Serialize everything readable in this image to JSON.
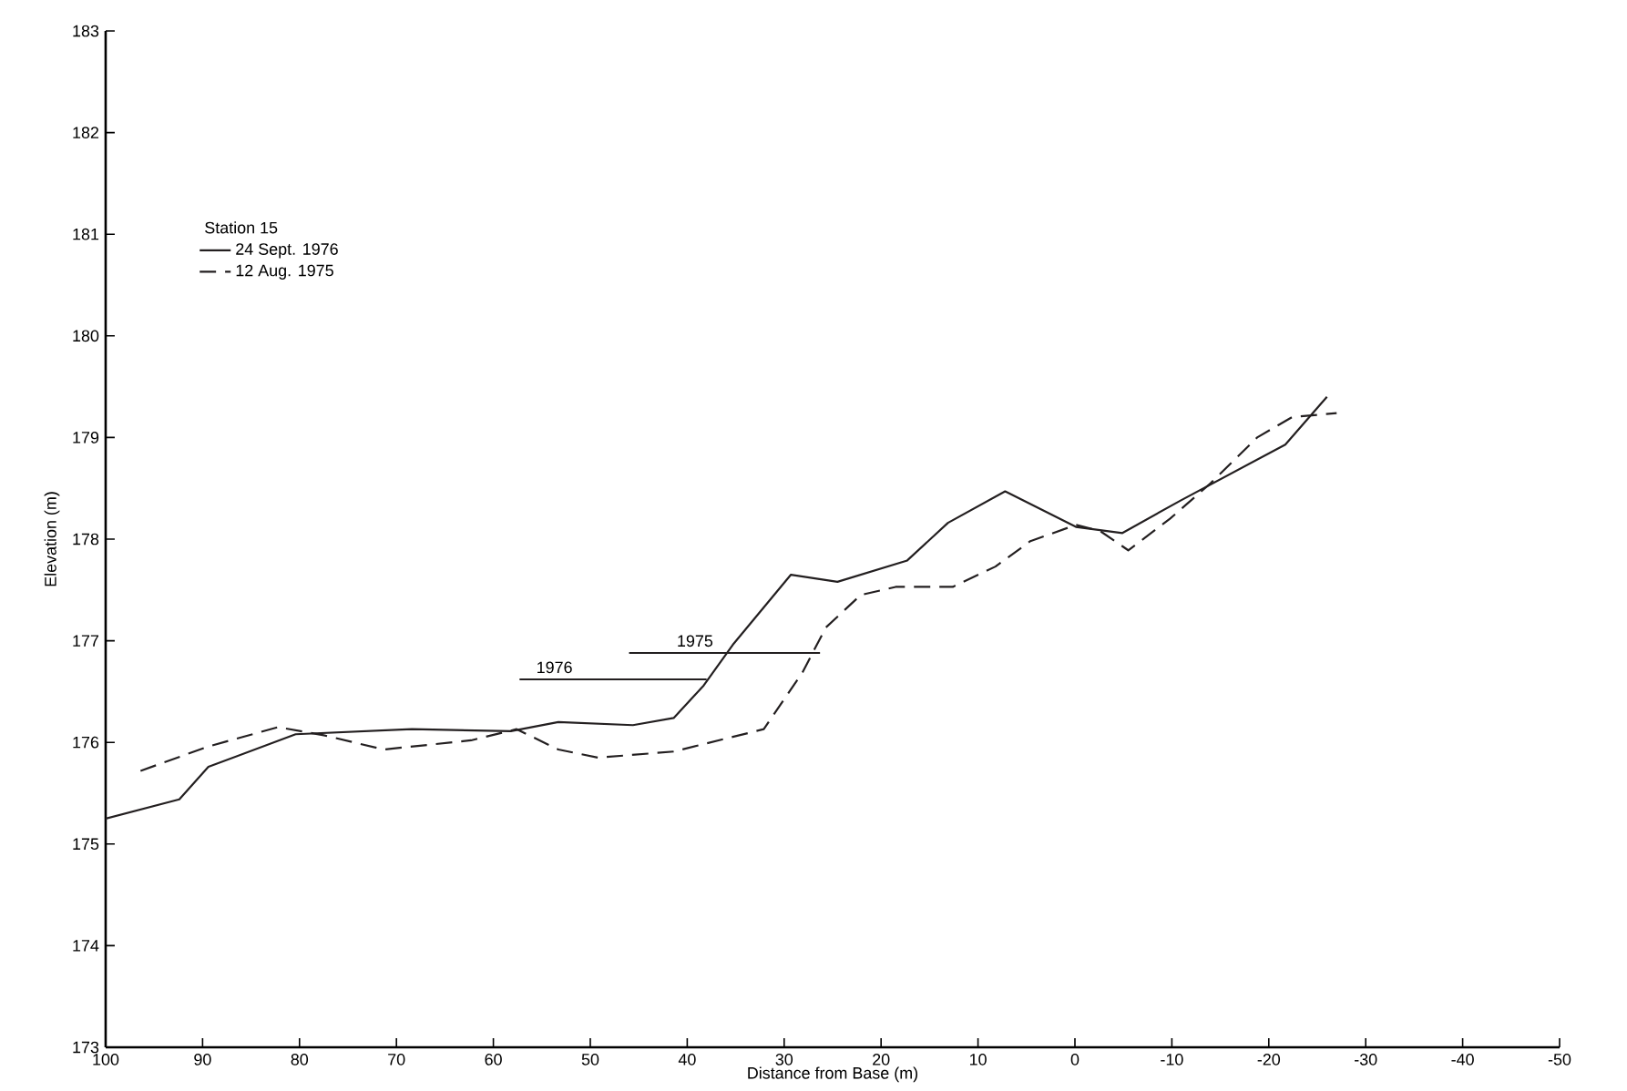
{
  "chart_data": {
    "type": "line",
    "xlabel": "Distance from Base (m)",
    "ylabel": "Elevation (m)",
    "legend_title": "Station 15",
    "legend": "top left",
    "xlim": [
      100,
      -50
    ],
    "ylim": [
      173,
      183
    ],
    "xticks": [
      100,
      90,
      80,
      70,
      60,
      50,
      40,
      30,
      20,
      10,
      0,
      -10,
      -20,
      -30,
      -40,
      -50
    ],
    "yticks": [
      173,
      174,
      175,
      176,
      177,
      178,
      179,
      180,
      181,
      182,
      183
    ],
    "series": [
      {
        "name": "24 Sept. 1976",
        "color": "#231f20",
        "line_style": "solid",
        "x": [
          100,
          92.4,
          89.4,
          80.4,
          68.4,
          58.2,
          53.3,
          45.6,
          41.4,
          38.3,
          35.3,
          29.3,
          24.5,
          17.3,
          13.1,
          7.2,
          -0.1,
          -4.9,
          -10.9,
          -21.7,
          -26
        ],
        "values": [
          175.25,
          175.44,
          175.76,
          176.08,
          176.13,
          176.11,
          176.2,
          176.17,
          176.24,
          176.56,
          176.96,
          177.65,
          177.58,
          177.79,
          178.16,
          178.47,
          178.12,
          178.06,
          178.38,
          178.93,
          179.4
        ]
      },
      {
        "name": "12 Aug. 1975",
        "color": "#231f20",
        "line_style": "dashed",
        "x": [
          96.4,
          89.4,
          82.2,
          77.5,
          71.3,
          62.3,
          57.6,
          53.3,
          49.2,
          41.4,
          32.1,
          28.1,
          25.7,
          22.1,
          18.5,
          12.6,
          8.2,
          4.6,
          -0.1,
          -2.6,
          -5.5,
          -9.8,
          -14,
          -18.8,
          -22.4,
          -27
        ],
        "values": [
          175.72,
          175.96,
          176.15,
          176.07,
          175.93,
          176.02,
          176.13,
          175.93,
          175.85,
          175.91,
          176.13,
          176.69,
          177.13,
          177.45,
          177.53,
          177.53,
          177.73,
          177.98,
          178.14,
          178.08,
          177.89,
          178.2,
          178.55,
          179.0,
          179.2,
          179.24
        ]
      },
      {
        "color": "#231f20",
        "line_style": "solid",
        "x": [
          57.3,
          38
        ],
        "values": [
          176.62,
          176.62
        ]
      },
      {
        "color": "#231f20",
        "line_style": "solid",
        "x": [
          46,
          26.3
        ],
        "values": [
          176.88,
          176.88
        ]
      }
    ],
    "annotations": [
      {
        "text": "1976",
        "x": 53.7,
        "y": 176.66
      },
      {
        "text": "1975",
        "x": 39.2,
        "y": 176.92
      }
    ]
  }
}
